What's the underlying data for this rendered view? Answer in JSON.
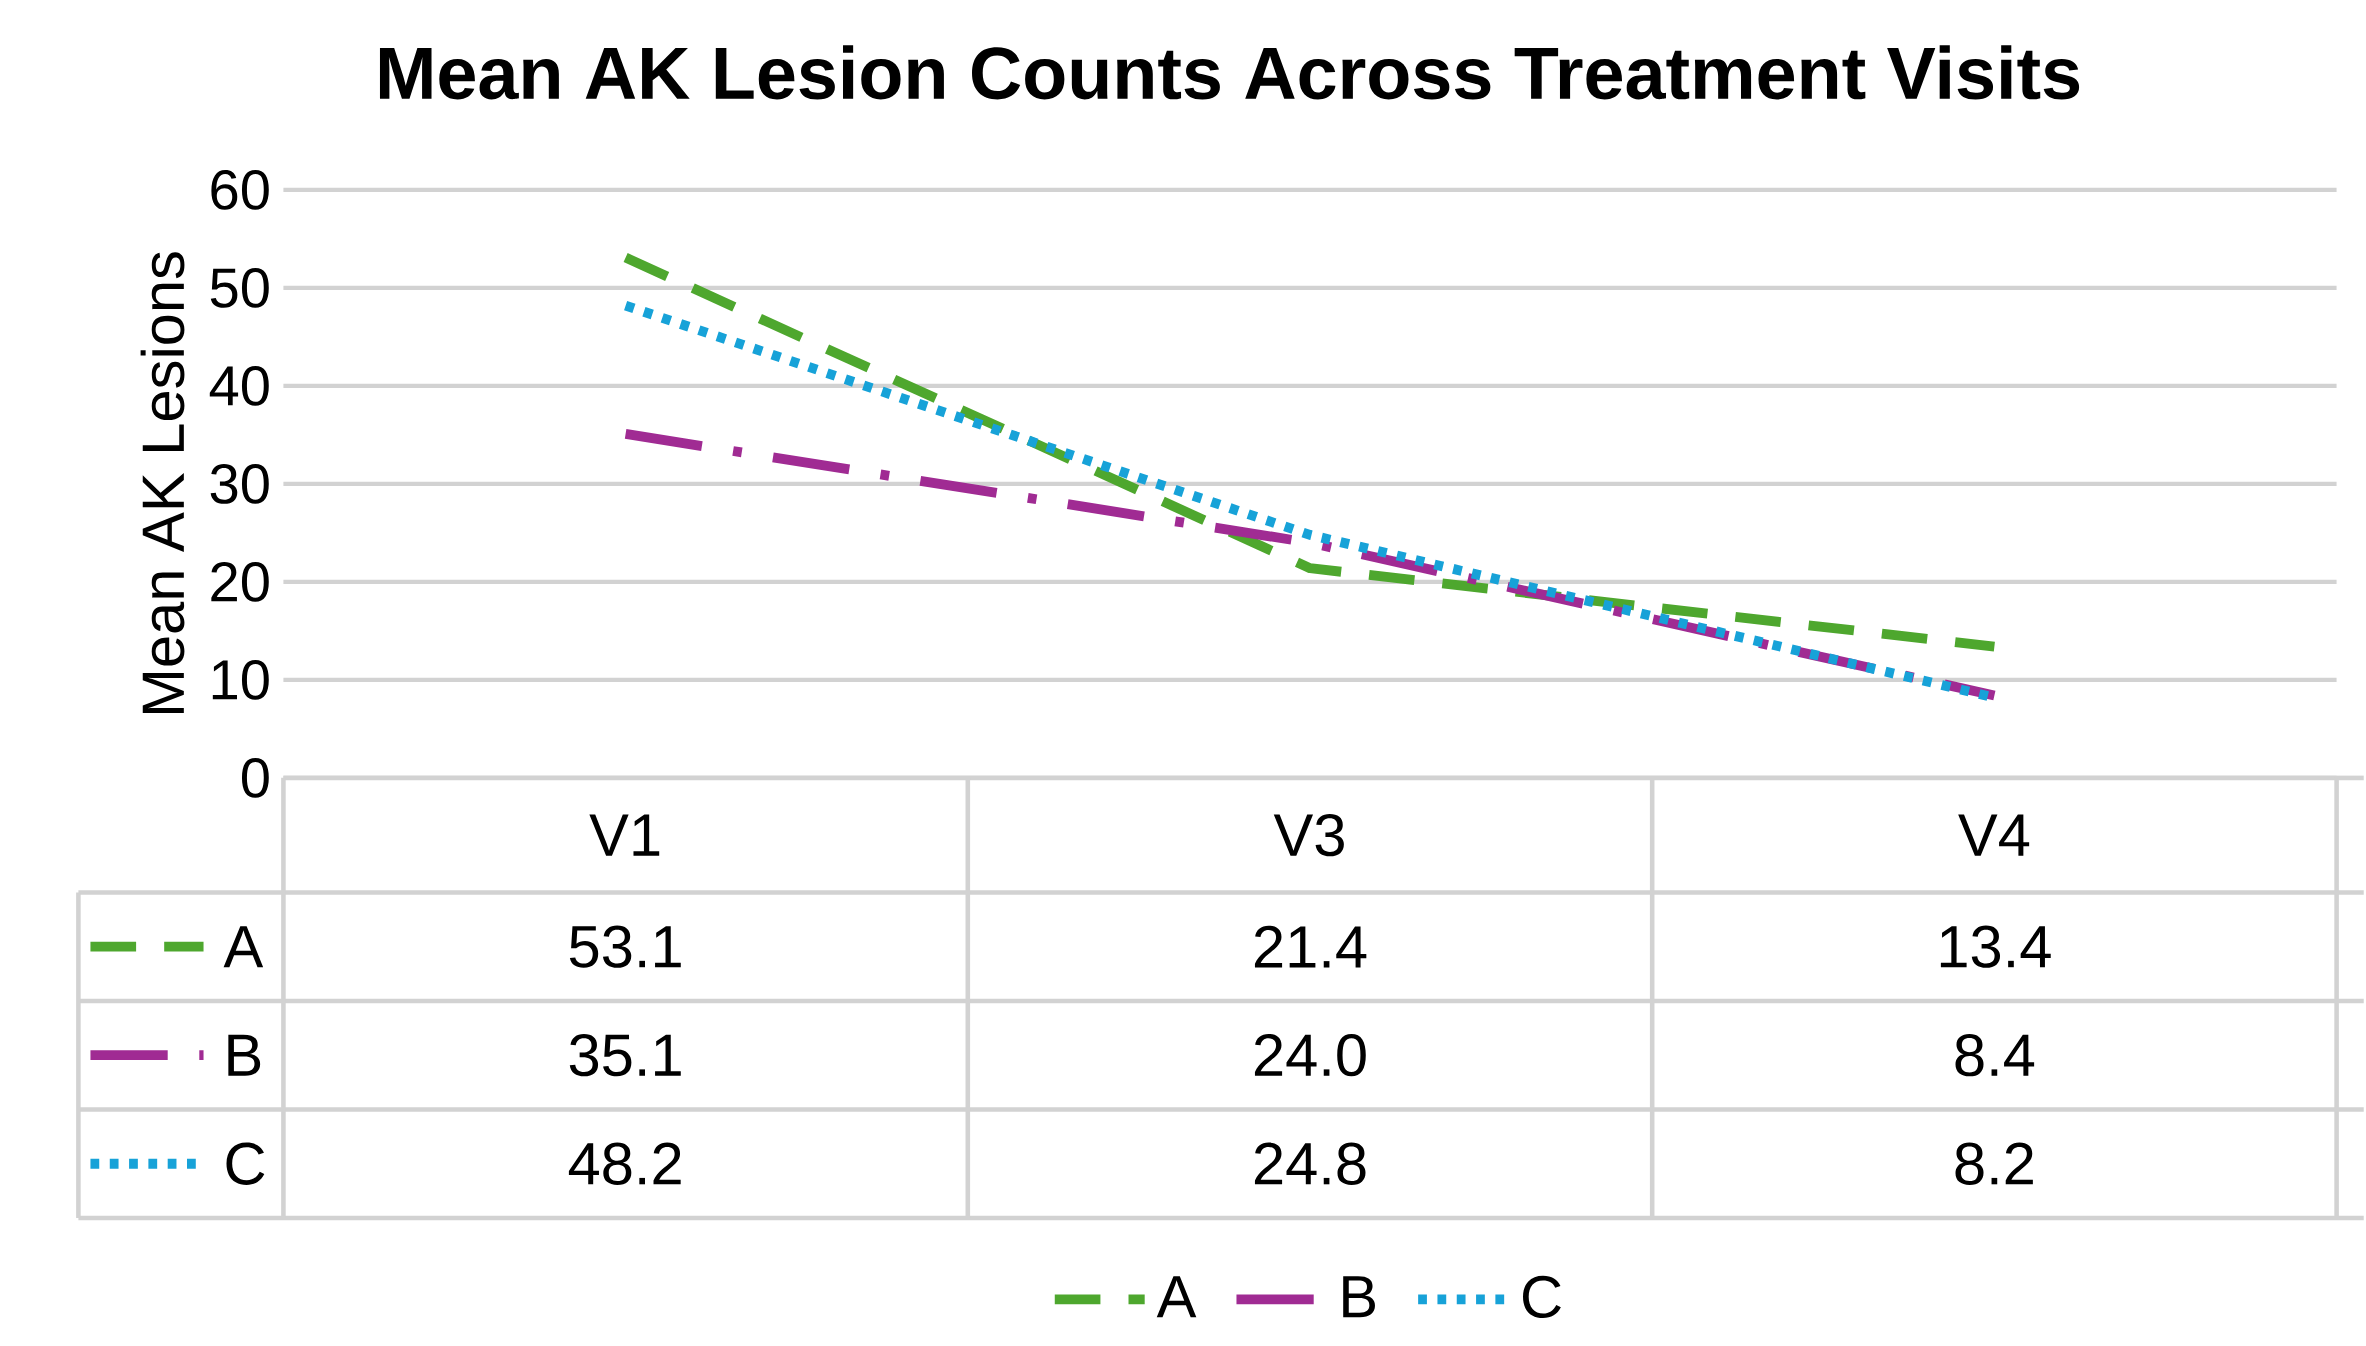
{
  "chart_data": {
    "type": "line",
    "title": "Mean AK Lesion Counts Across Treatment Visits",
    "ylabel": "Mean AK Lesions",
    "categories": [
      "V1",
      "V3",
      "V4"
    ],
    "series": [
      {
        "name": "A",
        "color": "#4ea72e",
        "line_style": "dashed",
        "values": [
          53.1,
          21.4,
          13.4
        ],
        "value_labels": [
          "53.1",
          "21.4",
          "13.4"
        ]
      },
      {
        "name": "B",
        "color": "#a02b93",
        "line_style": "dashdot",
        "values": [
          35.1,
          24.0,
          8.4
        ],
        "value_labels": [
          "35.1",
          "24.0",
          "8.4"
        ]
      },
      {
        "name": "C",
        "color": "#17a2d8",
        "line_style": "dotted",
        "values": [
          48.2,
          24.8,
          8.2
        ],
        "value_labels": [
          "48.2",
          "24.8",
          "8.2"
        ]
      }
    ],
    "ylim": [
      0,
      60
    ],
    "yticks": [
      0,
      10,
      20,
      30,
      40,
      50,
      60
    ],
    "grid": "y",
    "legend": "bottom"
  }
}
